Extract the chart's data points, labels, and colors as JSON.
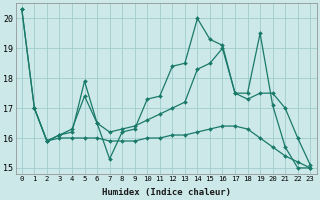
{
  "xlabel": "Humidex (Indice chaleur)",
  "bg_color": "#cce8e8",
  "grid_color": "#a0cccc",
  "line_color": "#1a7a6a",
  "xlim": [
    -0.5,
    23.5
  ],
  "ylim": [
    14.8,
    20.5
  ],
  "yticks": [
    15,
    16,
    17,
    18,
    19,
    20
  ],
  "xticks": [
    0,
    1,
    2,
    3,
    4,
    5,
    6,
    7,
    8,
    9,
    10,
    11,
    12,
    13,
    14,
    15,
    16,
    17,
    18,
    19,
    20,
    21,
    22,
    23
  ],
  "series": [
    {
      "x": [
        0,
        1,
        2,
        3,
        4,
        5,
        6,
        7,
        8,
        9,
        10,
        11,
        12,
        13,
        14,
        15,
        16,
        17,
        18,
        19,
        20,
        21,
        22,
        23
      ],
      "y": [
        20.3,
        17.0,
        15.9,
        16.1,
        16.2,
        17.9,
        16.5,
        15.3,
        16.2,
        16.3,
        17.3,
        17.4,
        18.4,
        18.5,
        20.0,
        19.3,
        19.1,
        17.5,
        17.5,
        19.5,
        17.1,
        15.7,
        15.0,
        15.0
      ]
    },
    {
      "x": [
        1,
        2,
        3,
        4,
        5,
        6,
        7,
        8,
        9,
        10,
        11,
        12,
        13,
        14,
        15,
        16,
        17,
        18,
        19,
        20,
        21,
        22,
        23
      ],
      "y": [
        17.0,
        15.9,
        16.1,
        16.3,
        17.4,
        16.5,
        16.2,
        16.3,
        16.4,
        16.6,
        16.8,
        17.0,
        17.2,
        18.3,
        18.5,
        19.0,
        17.5,
        17.3,
        17.5,
        17.5,
        17.0,
        16.0,
        15.1
      ]
    },
    {
      "x": [
        0,
        1,
        2,
        3,
        4,
        5,
        6,
        7,
        8,
        9,
        10,
        11,
        12,
        13,
        14,
        15,
        16,
        17,
        18,
        19,
        20,
        21,
        22,
        23
      ],
      "y": [
        20.3,
        17.0,
        15.9,
        16.0,
        16.0,
        16.0,
        16.0,
        15.9,
        15.9,
        15.9,
        16.0,
        16.0,
        16.1,
        16.1,
        16.2,
        16.3,
        16.4,
        16.4,
        16.3,
        16.0,
        15.7,
        15.4,
        15.2,
        15.0
      ]
    }
  ]
}
